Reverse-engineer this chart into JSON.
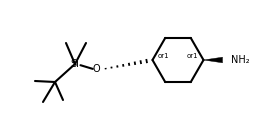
{
  "background_color": "#ffffff",
  "line_color": "#000000",
  "line_width": 1.5,
  "figsize": [
    2.7,
    1.28
  ],
  "dpi": 100,
  "Si_label": "Si",
  "O_label": "O",
  "NH2_label": "NH₂",
  "or1_label": "or1",
  "text_color": "#000000",
  "font_size_atom": 7.0,
  "font_size_stereo": 5.0
}
